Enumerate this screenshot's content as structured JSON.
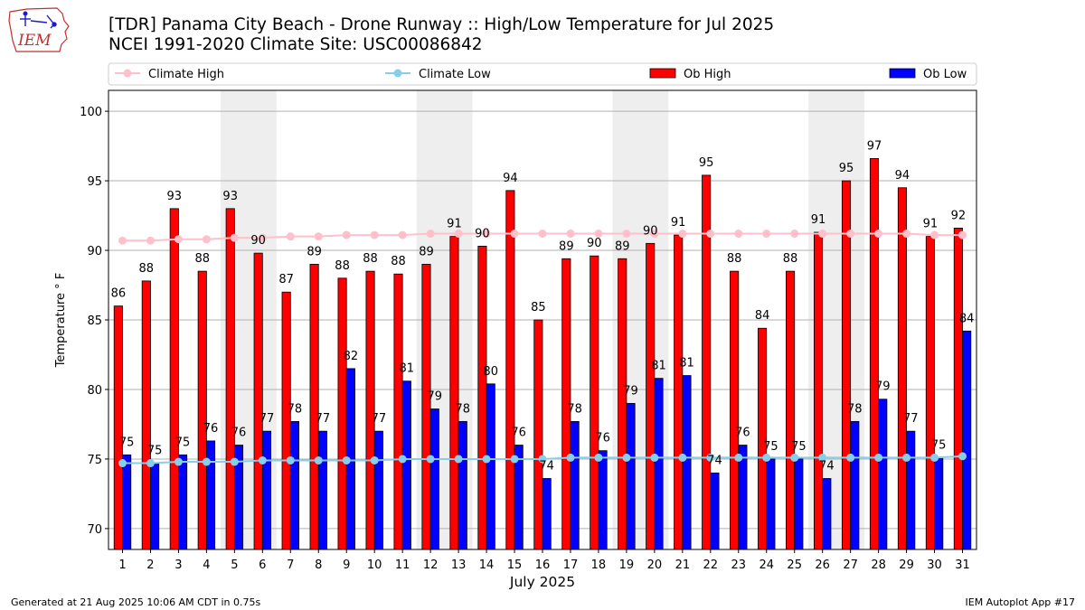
{
  "header": {
    "logo_text": "IEM",
    "title_line1": "[TDR] Panama City Beach - Drone Runway :: High/Low Temperature for Jul 2025",
    "title_line2": "NCEI 1991-2020 Climate Site: USC00086842"
  },
  "footer": {
    "generated": "Generated at 21 Aug 2025 10:06 AM CDT in 0.75s",
    "app": "IEM Autoplot App #17"
  },
  "colors": {
    "ob_high": "#ff0000",
    "ob_low": "#0000ff",
    "climate_high": "#ffc0cb",
    "climate_low": "#87ceeb",
    "weekend_band": "#eeeeee",
    "grid": "#b0b0b0"
  },
  "chart_data": {
    "type": "bar",
    "title": "[TDR] Panama City Beach - Drone Runway :: High/Low Temperature for Jul 2025",
    "xlabel": "July 2025",
    "ylabel": "Temperature ° F",
    "ylim": [
      68.5,
      101.5
    ],
    "yticks": [
      70,
      75,
      80,
      85,
      90,
      95,
      100
    ],
    "grid": true,
    "legend_position": "top",
    "categories": [
      "1",
      "2",
      "3",
      "4",
      "5",
      "6",
      "7",
      "8",
      "9",
      "10",
      "11",
      "12",
      "13",
      "14",
      "15",
      "16",
      "17",
      "18",
      "19",
      "20",
      "21",
      "22",
      "23",
      "24",
      "25",
      "26",
      "27",
      "28",
      "29",
      "30",
      "31"
    ],
    "shaded_weekends": [
      [
        5,
        6
      ],
      [
        12,
        13
      ],
      [
        19,
        20
      ],
      [
        26,
        27
      ]
    ],
    "series": [
      {
        "name": "Ob High",
        "kind": "bar",
        "values": [
          86,
          87.8,
          93,
          88.5,
          93,
          89.8,
          87,
          89,
          88,
          88.5,
          88.3,
          89,
          91,
          90.3,
          94.3,
          85,
          89.4,
          89.6,
          89.4,
          90.5,
          91.1,
          95.4,
          88.5,
          84.4,
          88.5,
          91.3,
          95,
          96.6,
          94.5,
          91,
          91.6
        ],
        "labels": [
          "86",
          "88",
          "93",
          "88",
          "93",
          "90",
          "87",
          "89",
          "88",
          "88",
          "88",
          "89",
          "91",
          "90",
          "94",
          "85",
          "89",
          "90",
          "89",
          "90",
          "91",
          "95",
          "88",
          "84",
          "88",
          "91",
          "95",
          "97",
          "94",
          "91",
          "92"
        ]
      },
      {
        "name": "Ob Low",
        "kind": "bar",
        "values": [
          75.3,
          74.7,
          75.3,
          76.3,
          76,
          77,
          77.7,
          77,
          81.5,
          77,
          80.6,
          78.6,
          77.7,
          80.4,
          76,
          73.6,
          77.7,
          75.6,
          79,
          80.8,
          81,
          74,
          76,
          75,
          75,
          73.6,
          77.7,
          79.3,
          77,
          75.1,
          84.2
        ],
        "labels": [
          "75",
          "75",
          "75",
          "76",
          "76",
          "77",
          "78",
          "77",
          "82",
          "77",
          "81",
          "79",
          "78",
          "80",
          "76",
          "74",
          "78",
          "76",
          "79",
          "81",
          "81",
          "74",
          "76",
          "75",
          "75",
          "74",
          "78",
          "79",
          "77",
          "75",
          "84"
        ]
      },
      {
        "name": "Climate High",
        "kind": "line",
        "values": [
          90.7,
          90.7,
          90.8,
          90.8,
          90.9,
          90.9,
          91,
          91,
          91.1,
          91.1,
          91.1,
          91.2,
          91.2,
          91.2,
          91.2,
          91.2,
          91.2,
          91.2,
          91.2,
          91.2,
          91.2,
          91.2,
          91.2,
          91.2,
          91.2,
          91.2,
          91.2,
          91.2,
          91.2,
          91.1,
          91.1
        ]
      },
      {
        "name": "Climate Low",
        "kind": "line",
        "values": [
          74.7,
          74.7,
          74.8,
          74.8,
          74.8,
          74.9,
          74.9,
          74.9,
          74.9,
          74.9,
          75,
          75,
          75,
          75,
          75,
          75,
          75.1,
          75.1,
          75.1,
          75.1,
          75.1,
          75.1,
          75.1,
          75.1,
          75.1,
          75.1,
          75.1,
          75.1,
          75.1,
          75.1,
          75.2
        ]
      }
    ],
    "legend": [
      "Climate High",
      "Climate Low",
      "Ob High",
      "Ob Low"
    ]
  }
}
